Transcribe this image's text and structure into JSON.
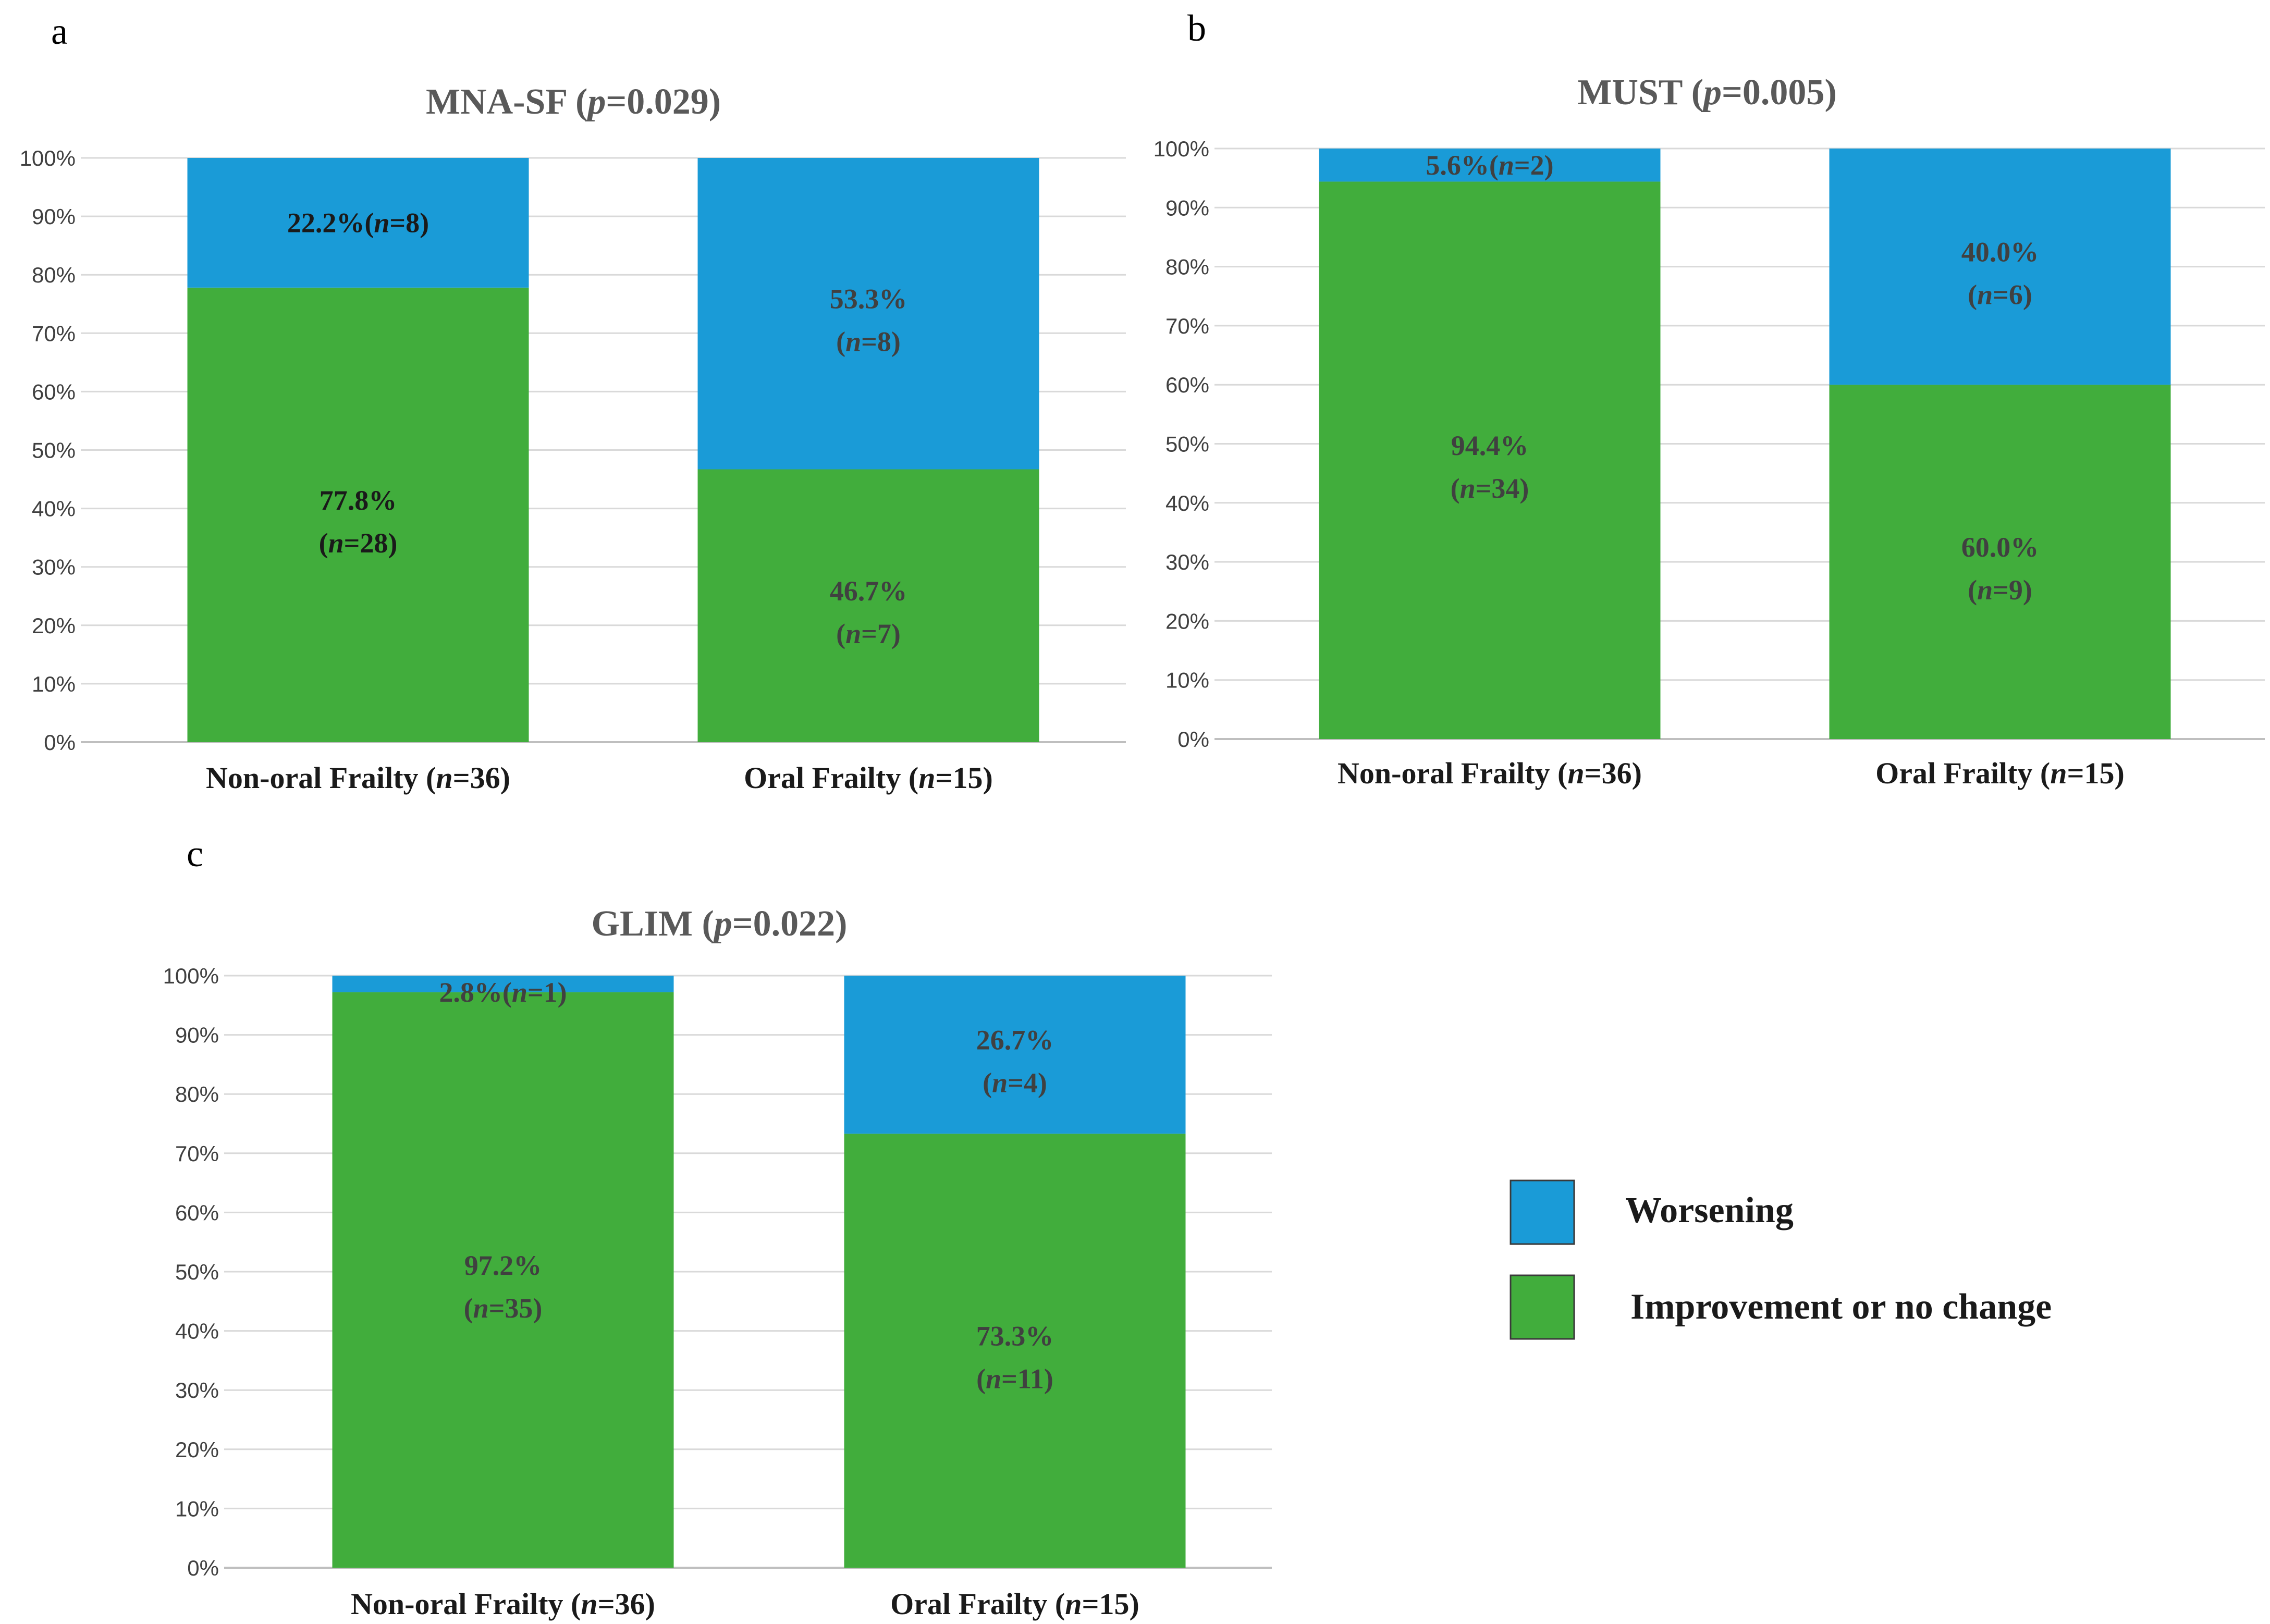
{
  "figure": "Stacked percentage bar charts comparing nutritional status outcome by oral frailty status",
  "colors": {
    "worsening": "#1a9bd7",
    "improvement": "#41ad3c",
    "grid": "#d9d9d9",
    "axis": "#bfbfbf",
    "tick_text": "#404040",
    "title_text": "#595959",
    "label_dark": "#1a1a1a",
    "label_grey": "#404040"
  },
  "legend": {
    "items": [
      {
        "key": "worsening",
        "label": "Worsening",
        "color": "#1a9bd7"
      },
      {
        "key": "improvement",
        "label": "Improvement or no change",
        "color": "#41ad3c"
      }
    ]
  },
  "chart_data": [
    {
      "panel": "a",
      "type": "bar",
      "stacked": true,
      "title": "MNA-SF",
      "p_label": "p",
      "p_value": "=0.029",
      "ylim": [
        0,
        100
      ],
      "yticks": [
        0,
        10,
        20,
        30,
        40,
        50,
        60,
        70,
        80,
        90,
        100
      ],
      "ytick_suffix": "%",
      "categories": [
        {
          "name": "Non-oral Frailty",
          "n": "36"
        },
        {
          "name": "Oral Frailty",
          "n": "15"
        }
      ],
      "series": [
        {
          "name": "Improvement or no change",
          "key": "improvement",
          "values": [
            77.8,
            46.7
          ],
          "labels": [
            "77.8%",
            "46.7%"
          ],
          "n": [
            "28",
            "7"
          ],
          "label_style": [
            "dark",
            "grey"
          ],
          "label_layout": [
            "stacked",
            "stacked"
          ]
        },
        {
          "name": "Worsening",
          "key": "worsening",
          "values": [
            22.2,
            53.3
          ],
          "labels": [
            "22.2%",
            "53.3%"
          ],
          "n": [
            "8",
            "8"
          ],
          "label_style": [
            "dark",
            "grey"
          ],
          "label_layout": [
            "inline",
            "stacked"
          ]
        }
      ]
    },
    {
      "panel": "b",
      "type": "bar",
      "stacked": true,
      "title": "MUST",
      "p_label": "p",
      "p_value": "=0.005",
      "ylim": [
        0,
        100
      ],
      "yticks": [
        0,
        10,
        20,
        30,
        40,
        50,
        60,
        70,
        80,
        90,
        100
      ],
      "ytick_suffix": "%",
      "categories": [
        {
          "name": "Non-oral Frailty",
          "n": "36"
        },
        {
          "name": "Oral Frailty",
          "n": "15"
        }
      ],
      "series": [
        {
          "name": "Improvement or no change",
          "key": "improvement",
          "values": [
            94.4,
            60.0
          ],
          "labels": [
            "94.4%",
            "60.0%"
          ],
          "n": [
            "34",
            "9"
          ],
          "label_style": [
            "grey",
            "grey"
          ],
          "label_layout": [
            "stacked",
            "stacked"
          ]
        },
        {
          "name": "Worsening",
          "key": "worsening",
          "values": [
            5.6,
            40.0
          ],
          "labels": [
            "5.6%",
            "40.0%"
          ],
          "n": [
            "2",
            "6"
          ],
          "label_style": [
            "grey",
            "grey"
          ],
          "label_layout": [
            "inline",
            "stacked"
          ]
        }
      ]
    },
    {
      "panel": "c",
      "type": "bar",
      "stacked": true,
      "title": "GLIM",
      "p_label": "p",
      "p_value": "=0.022",
      "ylim": [
        0,
        100
      ],
      "yticks": [
        0,
        10,
        20,
        30,
        40,
        50,
        60,
        70,
        80,
        90,
        100
      ],
      "ytick_suffix": "%",
      "categories": [
        {
          "name": "Non-oral Frailty",
          "n": "36"
        },
        {
          "name": "Oral Frailty",
          "n": "15"
        }
      ],
      "series": [
        {
          "name": "Improvement or no change",
          "key": "improvement",
          "values": [
            97.2,
            73.3
          ],
          "labels": [
            "97.2%",
            "73.3%"
          ],
          "n": [
            "35",
            "11"
          ],
          "label_style": [
            "grey",
            "grey"
          ],
          "label_layout": [
            "stacked",
            "stacked"
          ]
        },
        {
          "name": "Worsening",
          "key": "worsening",
          "values": [
            2.8,
            26.7
          ],
          "labels": [
            "2.8%",
            "26.7%"
          ],
          "n": [
            "1",
            "4"
          ],
          "label_style": [
            "grey",
            "grey"
          ],
          "label_layout": [
            "inline",
            "stacked"
          ]
        }
      ]
    }
  ]
}
